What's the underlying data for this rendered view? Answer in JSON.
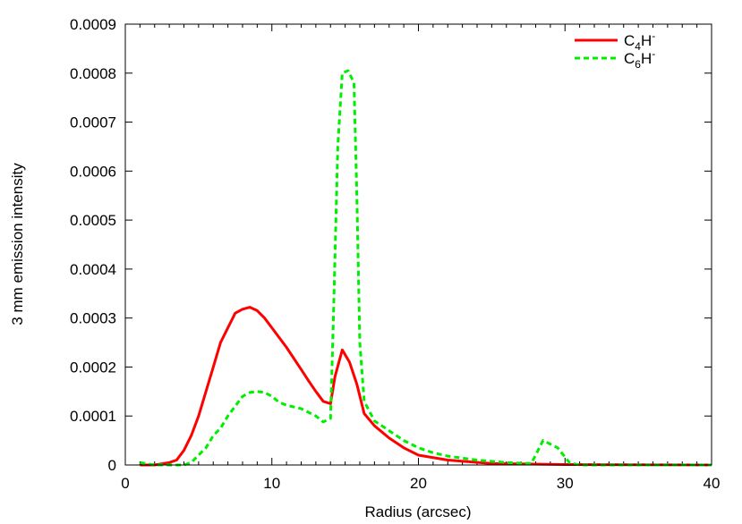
{
  "chart_data": {
    "type": "line",
    "title": "",
    "xlabel": "Radius (arcsec)",
    "ylabel": "3 mm emission intensity",
    "xlim": [
      0,
      40
    ],
    "ylim": [
      0,
      0.0009
    ],
    "xticks": [
      0,
      10,
      20,
      30,
      40
    ],
    "xtick_labels": [
      "0",
      "10",
      "20",
      "30",
      "40"
    ],
    "yticks": [
      0,
      0.0001,
      0.0002,
      0.0003,
      0.0004,
      0.0005,
      0.0006,
      0.0007,
      0.0008,
      0.0009
    ],
    "ytick_labels": [
      "0",
      "0.0001",
      "0.0002",
      "0.0003",
      "0.0004",
      "0.0005",
      "0.0006",
      "0.0007",
      "0.0008",
      "0.0009"
    ],
    "grid": false,
    "legend_position": "top-right",
    "series": [
      {
        "name": "C4H-",
        "name_parts": {
          "base": "C",
          "sub": "4",
          "base2": "H",
          "sup": "-"
        },
        "color": "#ff0000",
        "style": "solid",
        "x": [
          1,
          2,
          3,
          3.5,
          4,
          4.5,
          5,
          5.5,
          6,
          6.5,
          7,
          7.5,
          8,
          8.5,
          9,
          9.5,
          10,
          11,
          12,
          12.5,
          13,
          13.5,
          14,
          14.3,
          14.8,
          15.3,
          15.8,
          16.3,
          17,
          18,
          19,
          20,
          22,
          25,
          30,
          40
        ],
        "y": [
          0,
          0,
          5e-06,
          1e-05,
          3e-05,
          6e-05,
          0.0001,
          0.00015,
          0.0002,
          0.00025,
          0.00028,
          0.00031,
          0.000318,
          0.000322,
          0.000315,
          0.0003,
          0.00028,
          0.00024,
          0.000195,
          0.000172,
          0.00015,
          0.00013,
          0.000125,
          0.00018,
          0.000235,
          0.00021,
          0.000165,
          0.000105,
          8e-05,
          5.5e-05,
          3.5e-05,
          2e-05,
          1e-05,
          3e-06,
          1e-06,
          0
        ]
      },
      {
        "name": "C6H-",
        "name_parts": {
          "base": "C",
          "sub": "6",
          "base2": "H",
          "sup": "-"
        },
        "color": "#00ee00",
        "style": "dashed",
        "x": [
          1,
          2,
          4,
          4.5,
          5,
          5.5,
          6,
          6.5,
          7,
          7.5,
          8,
          8.5,
          9,
          9.5,
          10,
          10.5,
          11,
          12,
          13,
          13.5,
          14,
          14.2,
          14.5,
          14.8,
          15.2,
          15.6,
          15.8,
          16,
          16.3,
          17,
          18,
          19,
          20,
          21,
          22,
          24,
          26,
          27.7,
          28.5,
          29.5,
          30.3,
          31,
          40
        ],
        "y": [
          5e-06,
          0,
          0,
          5e-06,
          2e-05,
          3.5e-05,
          6e-05,
          7.5e-05,
          0.0001,
          0.00012,
          0.00014,
          0.000148,
          0.00015,
          0.000148,
          0.00014,
          0.000128,
          0.000122,
          0.000115,
          0.0001,
          8.8e-05,
          9.5e-05,
          0.0003,
          0.00065,
          0.0008,
          0.000805,
          0.00078,
          0.00055,
          0.00025,
          0.00013,
          9e-05,
          7e-05,
          5e-05,
          3.5e-05,
          2.5e-05,
          1.8e-05,
          1e-05,
          5e-06,
          3e-06,
          5e-05,
          3.5e-05,
          5e-06,
          0,
          0
        ]
      }
    ]
  }
}
